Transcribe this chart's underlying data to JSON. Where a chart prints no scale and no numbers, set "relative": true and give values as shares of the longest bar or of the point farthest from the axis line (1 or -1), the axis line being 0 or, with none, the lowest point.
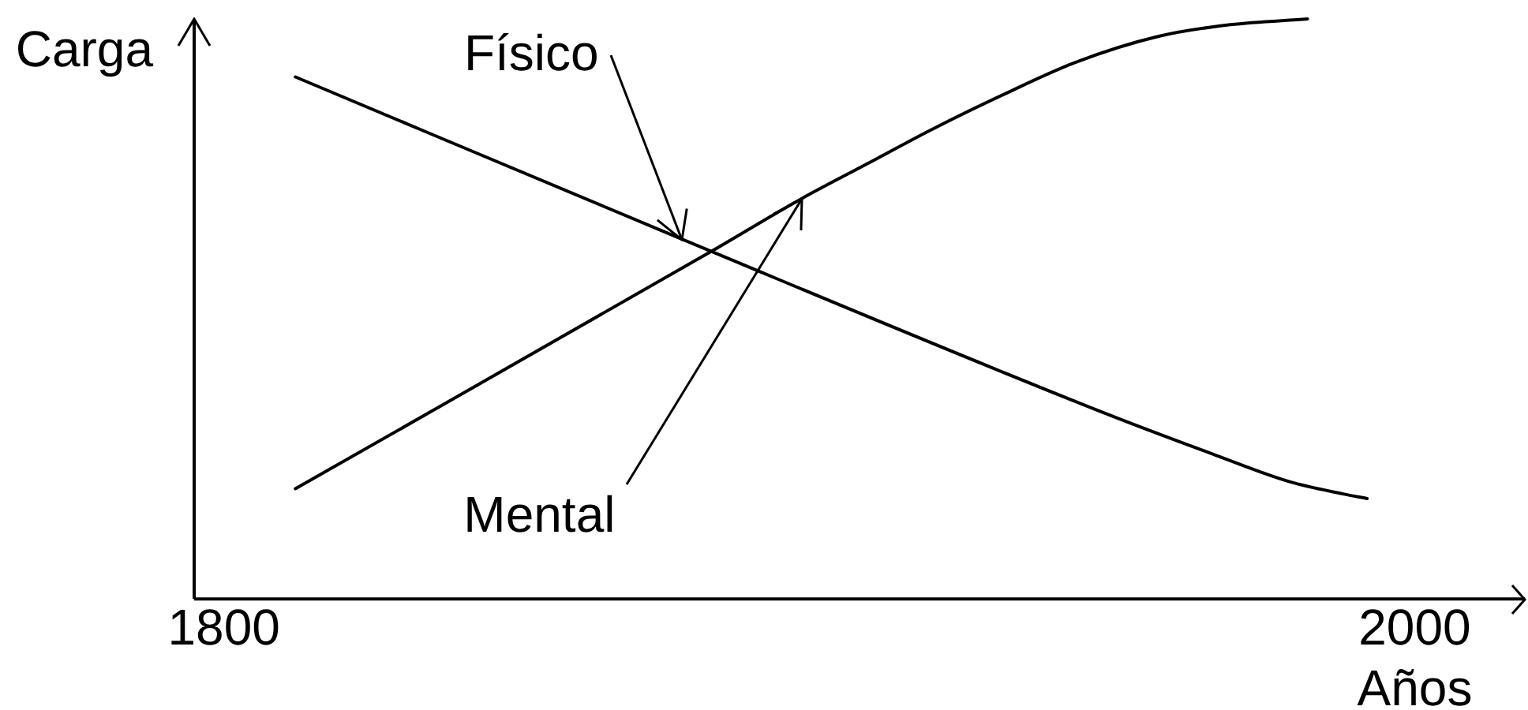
{
  "chart_data": {
    "type": "line",
    "relative": true,
    "xlabel": "Años",
    "ylabel": "Carga",
    "tick_labels": "x",
    "xlim": [
      1795,
      2018.5
    ],
    "xticks": [
      1800,
      2000
    ],
    "series": [
      {
        "color": "#000000",
        "x": [
          1812,
          1877,
          1948,
          1966,
          1979,
          1988,
          1992
        ],
        "values": [
          0.9,
          0.62,
          0.32,
          0.25,
          0.202,
          0.181,
          0.173
        ]
      },
      {
        "color": "#000000",
        "x": [
          1812,
          1882,
          1897,
          1908,
          1919,
          1931,
          1943,
          1957,
          1969,
          1982
        ],
        "values": [
          0.19,
          0.6,
          0.69,
          0.75,
          0.81,
          0.87,
          0.925,
          0.97,
          0.99,
          1.0
        ]
      }
    ],
    "annotations": [
      {
        "text": "Físico",
        "x": 1877,
        "y": 0.62
      },
      {
        "text": "Mental",
        "x": 1897,
        "y": 0.69
      }
    ]
  }
}
